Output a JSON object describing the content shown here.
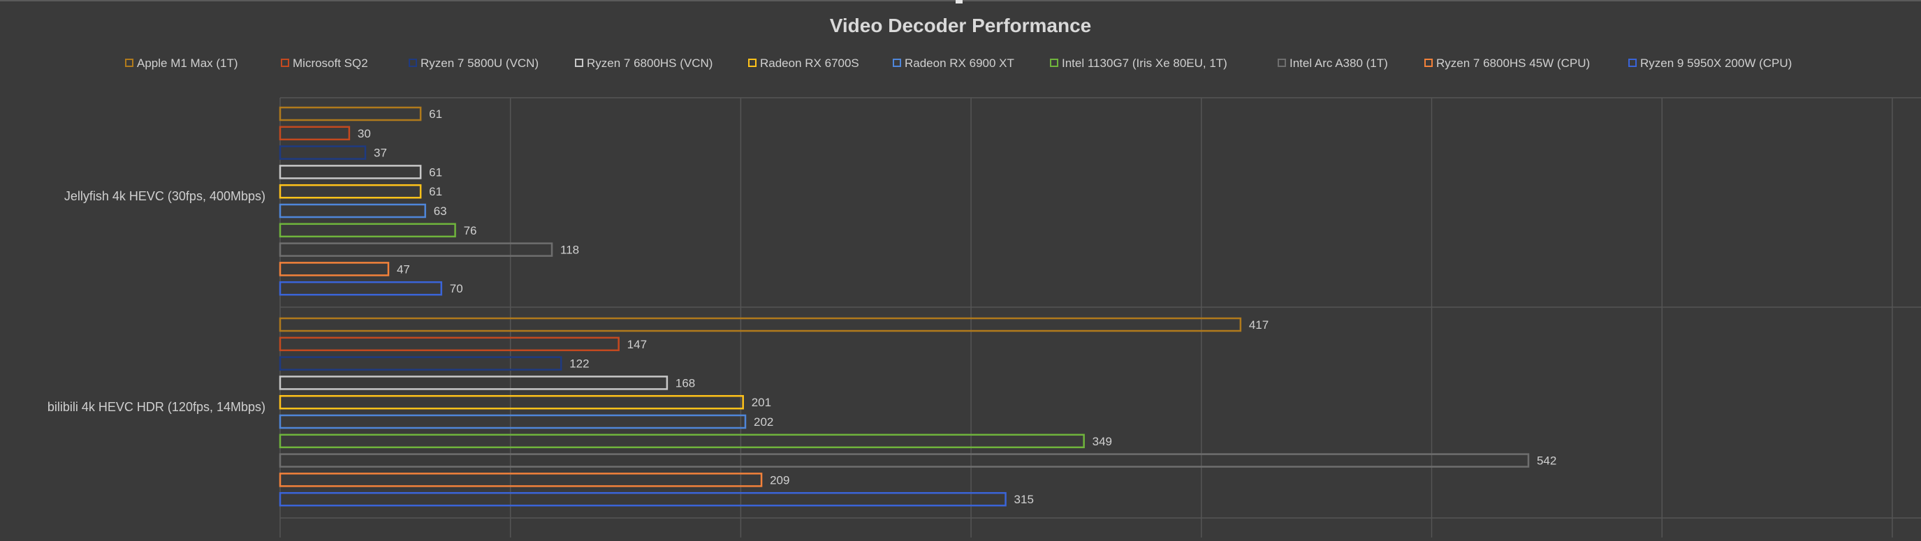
{
  "chart_data": {
    "type": "bar",
    "orientation": "horizontal",
    "title": "Video Decoder Performance",
    "legend_position": "top",
    "grid": true,
    "xlim": [
      0,
      700
    ],
    "categories": [
      "Jellyfish 4k HEVC (30fps, 400Mbps)",
      "bilibili 4k HEVC HDR (120fps, 14Mbps)"
    ],
    "series": [
      {
        "name": "Apple M1 Max (1T)",
        "color": "#b07a1c",
        "values": [
          61,
          417
        ]
      },
      {
        "name": "Microsoft SQ2",
        "color": "#c4491f",
        "values": [
          30,
          147
        ]
      },
      {
        "name": "Ryzen 7 5800U (VCN)",
        "color": "#1f3a80",
        "values": [
          37,
          122
        ]
      },
      {
        "name": "Ryzen 7 6800HS (VCN)",
        "color": "#c8c8c8",
        "values": [
          61,
          168
        ]
      },
      {
        "name": "Radeon RX 6700S",
        "color": "#ffc21a",
        "values": [
          61,
          201
        ]
      },
      {
        "name": "Radeon RX 6900 XT",
        "color": "#4f86d9",
        "values": [
          63,
          202
        ]
      },
      {
        "name": "Intel 1130G7 (Iris Xe 80EU, 1T)",
        "color": "#6fb43c",
        "values": [
          76,
          349
        ]
      },
      {
        "name": "Intel Arc A380 (1T)",
        "color": "#6e6e6e",
        "values": [
          118,
          542
        ]
      },
      {
        "name": "Ryzen 7 6800HS 45W (CPU)",
        "color": "#f2813a",
        "values": [
          47,
          209
        ]
      },
      {
        "name": "Ryzen 9 5950X 200W (CPU)",
        "color": "#3a64d8",
        "values": [
          70,
          315
        ]
      }
    ]
  }
}
